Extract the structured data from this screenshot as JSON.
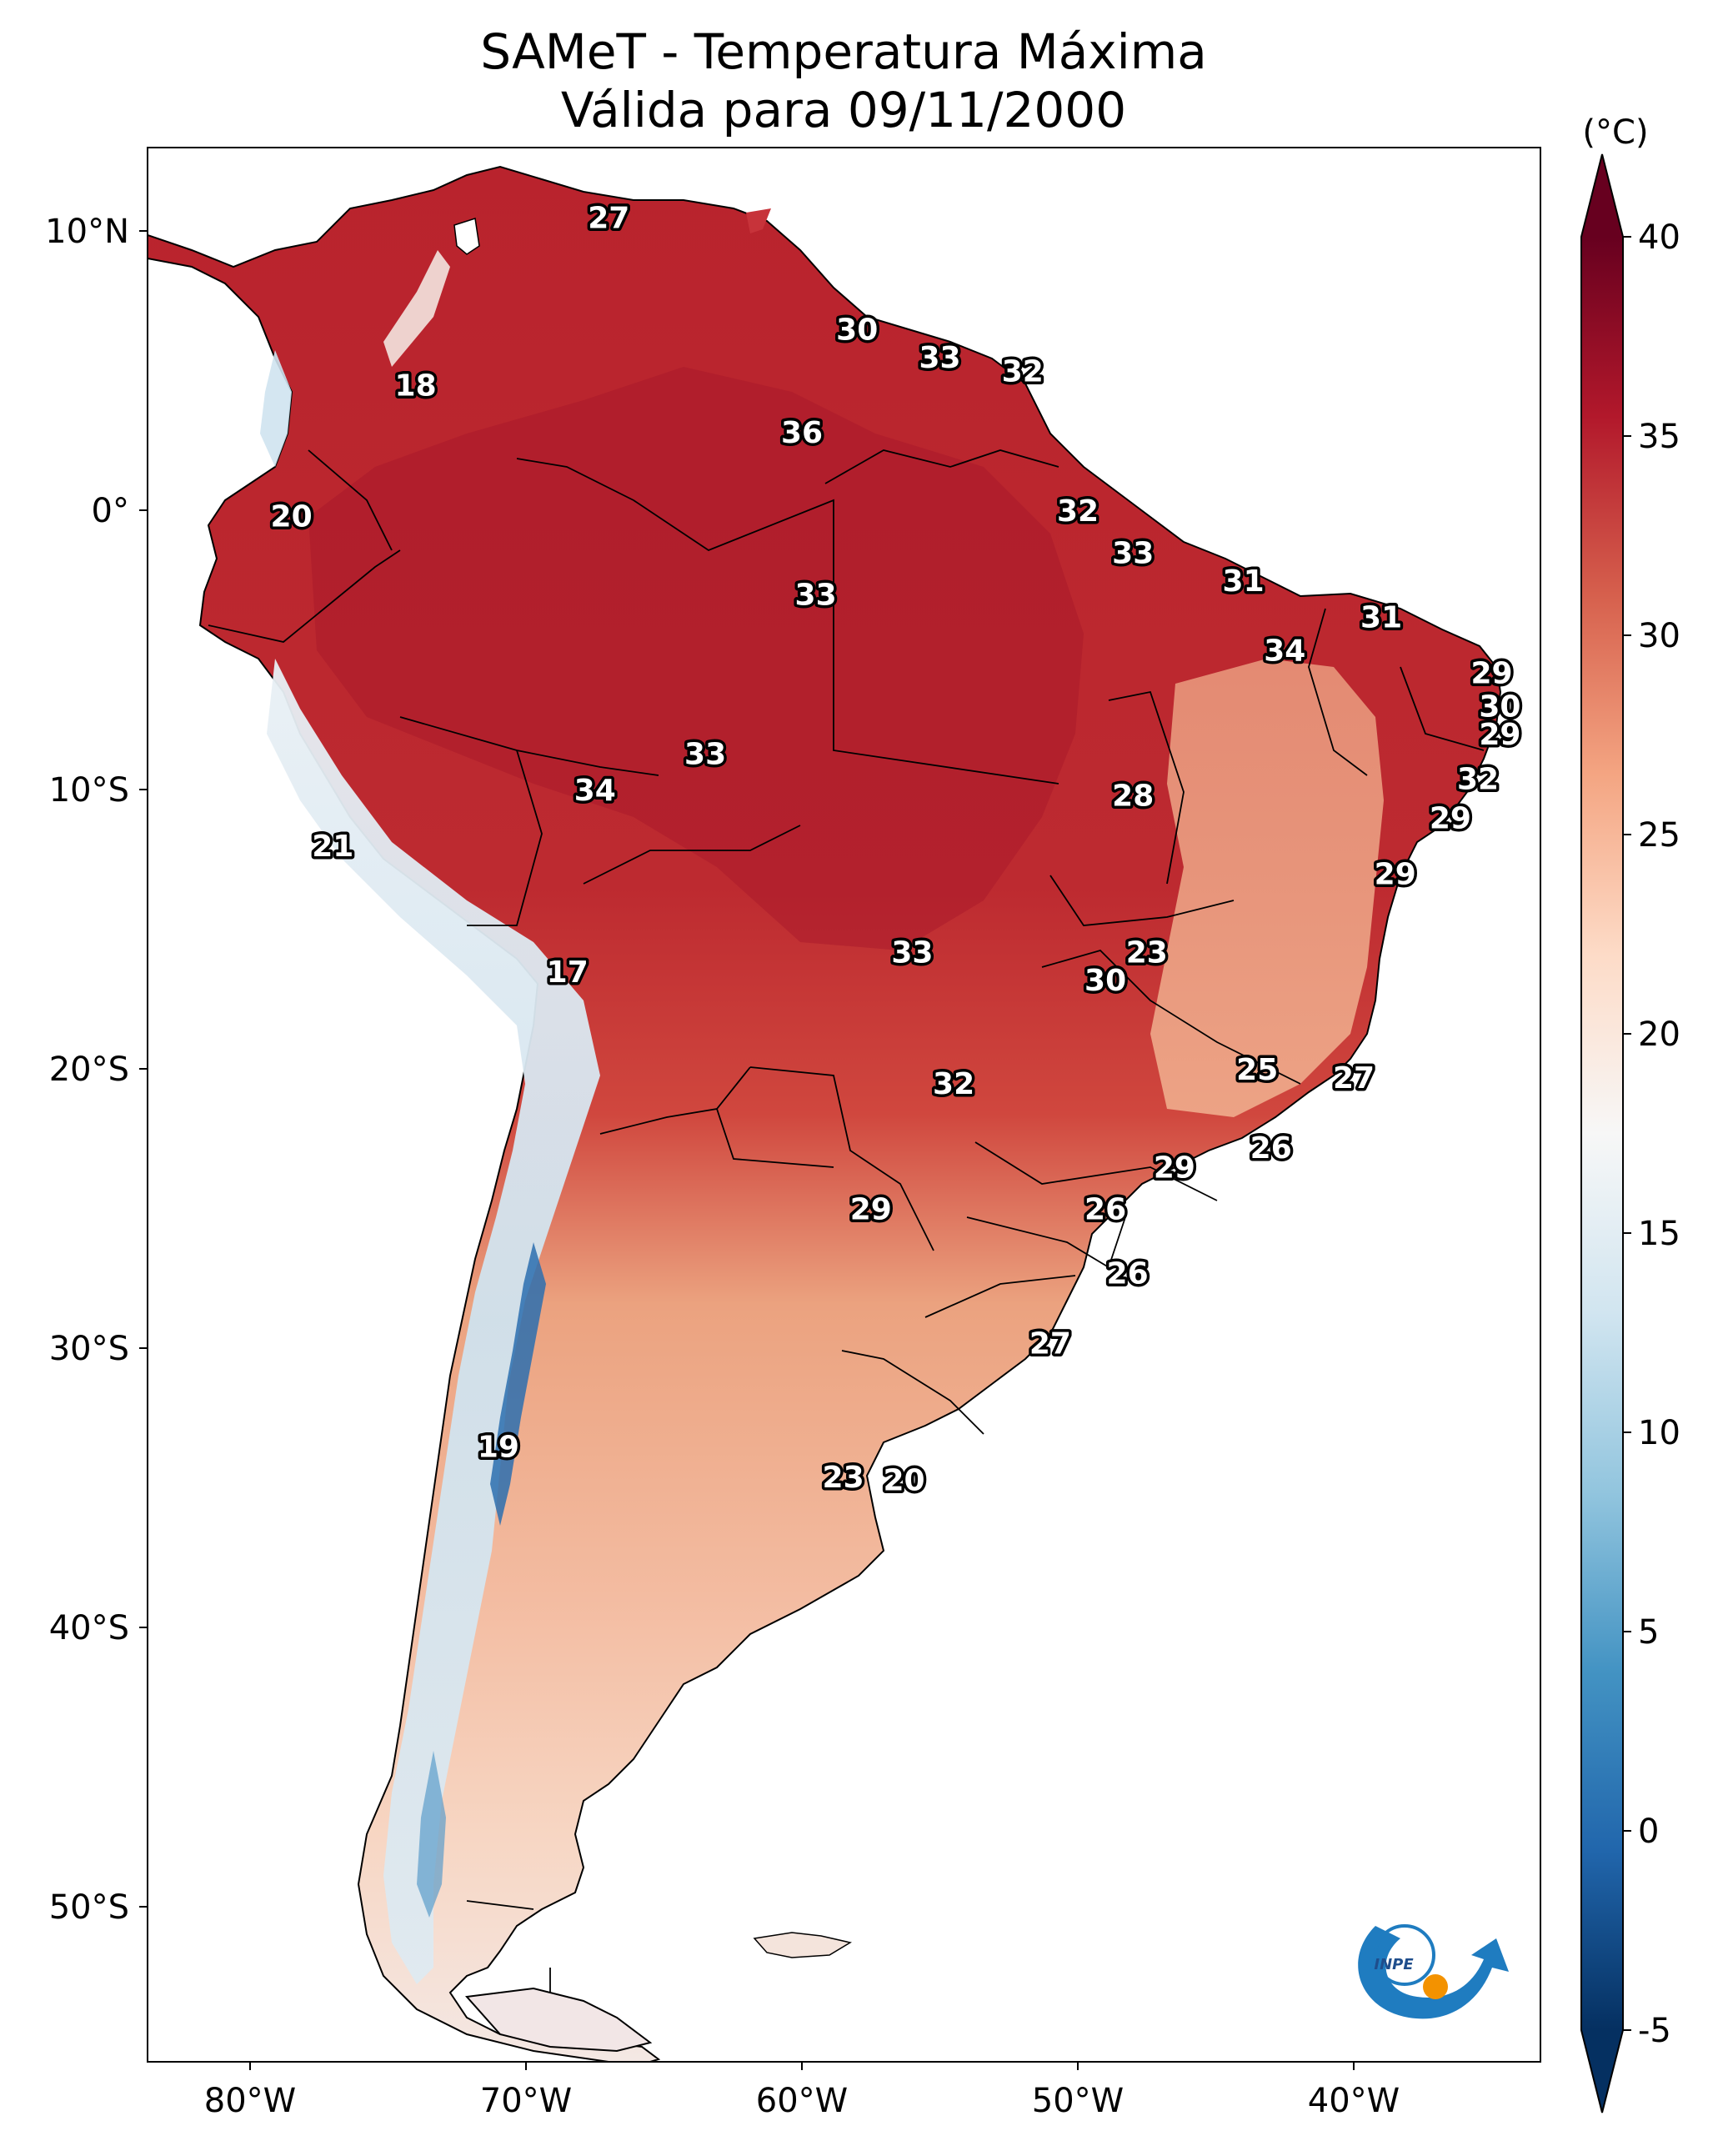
{
  "title": {
    "line1": "SAMeT - Temperatura Máxima",
    "line2": "Válida para 09/11/2000"
  },
  "axes": {
    "lat_ticks": [
      "10°N",
      "0°",
      "10°S",
      "20°S",
      "30°S",
      "40°S",
      "50°S"
    ],
    "lon_ticks": [
      "80°W",
      "70°W",
      "60°W",
      "50°W",
      "40°W"
    ]
  },
  "colorbar": {
    "unit": "(°C)",
    "ticks": [
      "40",
      "35",
      "30",
      "25",
      "20",
      "15",
      "10",
      "5",
      "0",
      "-5"
    ],
    "range": [
      -5,
      40
    ],
    "colormap": [
      "#053061",
      "#2166ac",
      "#4393c3",
      "#92c5de",
      "#d1e5f0",
      "#f7f7f7",
      "#fddbc7",
      "#f4a582",
      "#d6604d",
      "#b2182b",
      "#67001f"
    ]
  },
  "map_labels": [
    {
      "value": "27",
      "lon": -67.0,
      "lat": 10.5
    },
    {
      "value": "30",
      "lon": -58.0,
      "lat": 6.5
    },
    {
      "value": "33",
      "lon": -55.0,
      "lat": 5.5
    },
    {
      "value": "32",
      "lon": -52.0,
      "lat": 5.0
    },
    {
      "value": "18",
      "lon": -74.0,
      "lat": 4.5
    },
    {
      "value": "36",
      "lon": -60.0,
      "lat": 2.8
    },
    {
      "value": "20",
      "lon": -78.5,
      "lat": -0.2
    },
    {
      "value": "32",
      "lon": -50.0,
      "lat": 0.0
    },
    {
      "value": "33",
      "lon": -48.0,
      "lat": -1.5
    },
    {
      "value": "31",
      "lon": -44.0,
      "lat": -2.5
    },
    {
      "value": "33",
      "lon": -59.5,
      "lat": -3.0
    },
    {
      "value": "31",
      "lon": -39.0,
      "lat": -3.8
    },
    {
      "value": "34",
      "lon": -42.5,
      "lat": -5.0
    },
    {
      "value": "29",
      "lon": -35.0,
      "lat": -5.8
    },
    {
      "value": "30",
      "lon": -34.7,
      "lat": -7.0
    },
    {
      "value": "29",
      "lon": -34.7,
      "lat": -8.0
    },
    {
      "value": "33",
      "lon": -63.5,
      "lat": -8.7
    },
    {
      "value": "34",
      "lon": -67.5,
      "lat": -10.0
    },
    {
      "value": "28",
      "lon": -48.0,
      "lat": -10.2
    },
    {
      "value": "32",
      "lon": -35.5,
      "lat": -9.6
    },
    {
      "value": "29",
      "lon": -36.5,
      "lat": -11.0
    },
    {
      "value": "21",
      "lon": -77.0,
      "lat": -12.0
    },
    {
      "value": "29",
      "lon": -38.5,
      "lat": -13.0
    },
    {
      "value": "33",
      "lon": -56.0,
      "lat": -15.8
    },
    {
      "value": "23",
      "lon": -47.5,
      "lat": -15.8
    },
    {
      "value": "30",
      "lon": -49.0,
      "lat": -16.8
    },
    {
      "value": "17",
      "lon": -68.5,
      "lat": -16.5
    },
    {
      "value": "25",
      "lon": -43.5,
      "lat": -20.0
    },
    {
      "value": "27",
      "lon": -40.0,
      "lat": -20.3
    },
    {
      "value": "32",
      "lon": -54.5,
      "lat": -20.5
    },
    {
      "value": "26",
      "lon": -43.0,
      "lat": -22.8
    },
    {
      "value": "29",
      "lon": -46.5,
      "lat": -23.5
    },
    {
      "value": "29",
      "lon": -57.5,
      "lat": -25.0
    },
    {
      "value": "26",
      "lon": -49.0,
      "lat": -25.0
    },
    {
      "value": "26",
      "lon": -48.2,
      "lat": -27.3
    },
    {
      "value": "27",
      "lon": -51.0,
      "lat": -29.8
    },
    {
      "value": "19",
      "lon": -71.0,
      "lat": -33.5
    },
    {
      "value": "23",
      "lon": -58.5,
      "lat": -34.6
    },
    {
      "value": "20",
      "lon": -56.3,
      "lat": -34.7
    }
  ],
  "logo": {
    "text": "INPE"
  }
}
